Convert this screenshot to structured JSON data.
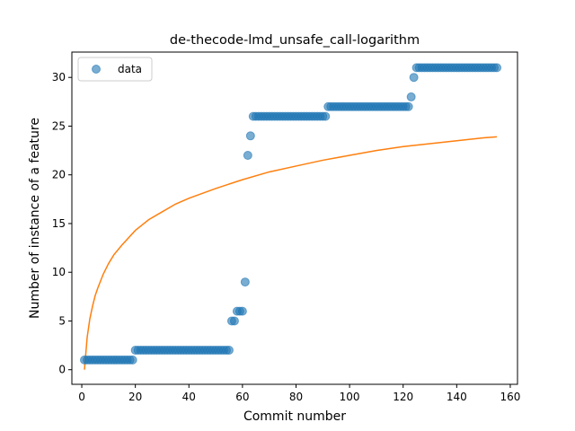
{
  "chart_data": {
    "type": "scatter",
    "title": "de-thecode-lmd_unsafe_call-logarithm",
    "xlabel": "Commit number",
    "ylabel": "Number of instance of a feature",
    "xlim": [
      -3.7,
      162.7
    ],
    "ylim": [
      -1.5,
      32.6
    ],
    "xticks": [
      0,
      20,
      40,
      60,
      80,
      100,
      120,
      140,
      160
    ],
    "yticks": [
      0,
      5,
      10,
      15,
      20,
      25,
      30
    ],
    "grid": false,
    "legend": {
      "location": "upper left",
      "entries": [
        "data"
      ]
    },
    "colors": {
      "data": "#1f77b4",
      "fit": "#ff7f0e"
    },
    "series": [
      {
        "name": "data",
        "kind": "scatter",
        "points": [
          [
            1,
            1
          ],
          [
            2,
            1
          ],
          [
            3,
            1
          ],
          [
            4,
            1
          ],
          [
            5,
            1
          ],
          [
            6,
            1
          ],
          [
            7,
            1
          ],
          [
            8,
            1
          ],
          [
            9,
            1
          ],
          [
            10,
            1
          ],
          [
            11,
            1
          ],
          [
            12,
            1
          ],
          [
            13,
            1
          ],
          [
            14,
            1
          ],
          [
            15,
            1
          ],
          [
            16,
            1
          ],
          [
            17,
            1
          ],
          [
            18,
            1
          ],
          [
            19,
            1
          ],
          [
            20,
            2
          ],
          [
            21,
            2
          ],
          [
            22,
            2
          ],
          [
            23,
            2
          ],
          [
            24,
            2
          ],
          [
            25,
            2
          ],
          [
            26,
            2
          ],
          [
            27,
            2
          ],
          [
            28,
            2
          ],
          [
            29,
            2
          ],
          [
            30,
            2
          ],
          [
            31,
            2
          ],
          [
            32,
            2
          ],
          [
            33,
            2
          ],
          [
            34,
            2
          ],
          [
            35,
            2
          ],
          [
            36,
            2
          ],
          [
            37,
            2
          ],
          [
            38,
            2
          ],
          [
            39,
            2
          ],
          [
            40,
            2
          ],
          [
            41,
            2
          ],
          [
            42,
            2
          ],
          [
            43,
            2
          ],
          [
            44,
            2
          ],
          [
            45,
            2
          ],
          [
            46,
            2
          ],
          [
            47,
            2
          ],
          [
            48,
            2
          ],
          [
            49,
            2
          ],
          [
            50,
            2
          ],
          [
            51,
            2
          ],
          [
            52,
            2
          ],
          [
            53,
            2
          ],
          [
            54,
            2
          ],
          [
            55,
            2
          ],
          [
            56,
            5
          ],
          [
            57,
            5
          ],
          [
            58,
            6
          ],
          [
            59,
            6
          ],
          [
            60,
            6
          ],
          [
            61,
            9
          ],
          [
            62,
            22
          ],
          [
            63,
            24
          ],
          [
            64,
            26
          ],
          [
            65,
            26
          ],
          [
            66,
            26
          ],
          [
            67,
            26
          ],
          [
            68,
            26
          ],
          [
            69,
            26
          ],
          [
            70,
            26
          ],
          [
            71,
            26
          ],
          [
            72,
            26
          ],
          [
            73,
            26
          ],
          [
            74,
            26
          ],
          [
            75,
            26
          ],
          [
            76,
            26
          ],
          [
            77,
            26
          ],
          [
            78,
            26
          ],
          [
            79,
            26
          ],
          [
            80,
            26
          ],
          [
            81,
            26
          ],
          [
            82,
            26
          ],
          [
            83,
            26
          ],
          [
            84,
            26
          ],
          [
            85,
            26
          ],
          [
            86,
            26
          ],
          [
            87,
            26
          ],
          [
            88,
            26
          ],
          [
            89,
            26
          ],
          [
            90,
            26
          ],
          [
            91,
            26
          ],
          [
            92,
            27
          ],
          [
            93,
            27
          ],
          [
            94,
            27
          ],
          [
            95,
            27
          ],
          [
            96,
            27
          ],
          [
            97,
            27
          ],
          [
            98,
            27
          ],
          [
            99,
            27
          ],
          [
            100,
            27
          ],
          [
            101,
            27
          ],
          [
            102,
            27
          ],
          [
            103,
            27
          ],
          [
            104,
            27
          ],
          [
            105,
            27
          ],
          [
            106,
            27
          ],
          [
            107,
            27
          ],
          [
            108,
            27
          ],
          [
            109,
            27
          ],
          [
            110,
            27
          ],
          [
            111,
            27
          ],
          [
            112,
            27
          ],
          [
            113,
            27
          ],
          [
            114,
            27
          ],
          [
            115,
            27
          ],
          [
            116,
            27
          ],
          [
            117,
            27
          ],
          [
            118,
            27
          ],
          [
            119,
            27
          ],
          [
            120,
            27
          ],
          [
            121,
            27
          ],
          [
            122,
            27
          ],
          [
            123,
            28
          ],
          [
            124,
            30
          ],
          [
            125,
            31
          ],
          [
            126,
            31
          ],
          [
            127,
            31
          ],
          [
            128,
            31
          ],
          [
            129,
            31
          ],
          [
            130,
            31
          ],
          [
            131,
            31
          ],
          [
            132,
            31
          ],
          [
            133,
            31
          ],
          [
            134,
            31
          ],
          [
            135,
            31
          ],
          [
            136,
            31
          ],
          [
            137,
            31
          ],
          [
            138,
            31
          ],
          [
            139,
            31
          ],
          [
            140,
            31
          ],
          [
            141,
            31
          ],
          [
            142,
            31
          ],
          [
            143,
            31
          ],
          [
            144,
            31
          ],
          [
            145,
            31
          ],
          [
            146,
            31
          ],
          [
            147,
            31
          ],
          [
            148,
            31
          ],
          [
            149,
            31
          ],
          [
            150,
            31
          ],
          [
            151,
            31
          ],
          [
            152,
            31
          ],
          [
            153,
            31
          ],
          [
            154,
            31
          ],
          [
            155,
            31
          ]
        ]
      },
      {
        "name": "",
        "kind": "line",
        "function": "logarithmic fit",
        "points": [
          [
            1,
            0.0
          ],
          [
            2,
            3.3
          ],
          [
            3,
            5.2
          ],
          [
            4,
            6.5
          ],
          [
            5,
            7.6
          ],
          [
            6,
            8.4
          ],
          [
            8,
            9.8
          ],
          [
            10,
            10.9
          ],
          [
            12,
            11.8
          ],
          [
            15,
            12.8
          ],
          [
            20,
            14.3
          ],
          [
            25,
            15.4
          ],
          [
            30,
            16.2
          ],
          [
            35,
            17.0
          ],
          [
            40,
            17.6
          ],
          [
            50,
            18.6
          ],
          [
            60,
            19.5
          ],
          [
            70,
            20.3
          ],
          [
            80,
            20.9
          ],
          [
            90,
            21.5
          ],
          [
            100,
            22.0
          ],
          [
            110,
            22.5
          ],
          [
            120,
            22.9
          ],
          [
            130,
            23.2
          ],
          [
            140,
            23.5
          ],
          [
            150,
            23.8
          ],
          [
            155,
            23.9
          ]
        ]
      }
    ]
  }
}
